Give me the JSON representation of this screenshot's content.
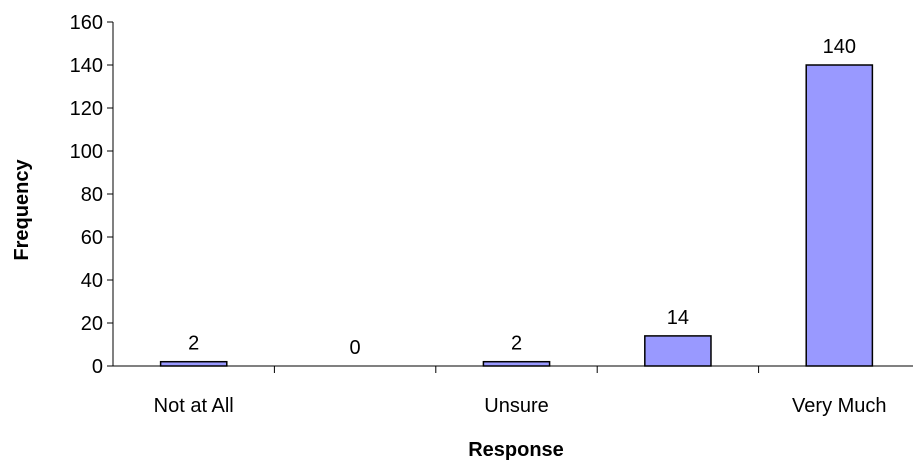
{
  "chart_data": {
    "type": "bar",
    "categories": [
      "Not at All",
      "",
      "Unsure",
      "",
      "Very Much"
    ],
    "values": [
      2,
      0,
      2,
      14,
      140
    ],
    "data_labels": [
      "2",
      "0",
      "2",
      "14",
      "140"
    ],
    "xlabel": "Response",
    "ylabel": "Frequency",
    "ylim": [
      0,
      160
    ],
    "yticks": [
      0,
      20,
      40,
      60,
      80,
      100,
      120,
      140,
      160
    ],
    "grid": false,
    "bar_color": "#9999ff",
    "bar_edge_color": "#000000"
  }
}
